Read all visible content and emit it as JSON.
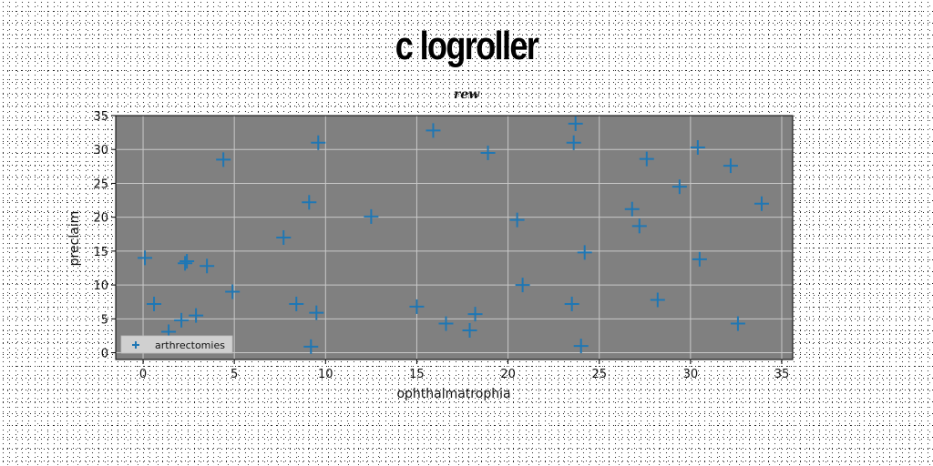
{
  "chart_data": {
    "type": "scatter",
    "title": "c logroller",
    "subtitle": "rew",
    "xlabel": "ophthalmatrophia",
    "ylabel": "preclaim",
    "xlim": [
      -1.5,
      35.6
    ],
    "ylim": [
      -1,
      35
    ],
    "xticks": [
      0,
      5,
      10,
      15,
      20,
      25,
      30,
      35
    ],
    "yticks": [
      0,
      5,
      10,
      15,
      20,
      25,
      30,
      35
    ],
    "grid": true,
    "legend_position": "lower-left",
    "colors": {
      "plot_background": "#808080",
      "marker": "#1f77b4",
      "grid": "#c8c8c8"
    },
    "series": [
      {
        "name": "arthrectomies",
        "marker": "plus",
        "x": [
          0.1,
          0.6,
          1.4,
          2.1,
          2.3,
          2.4,
          2.9,
          3.5,
          4.4,
          4.9,
          7.7,
          8.4,
          9.1,
          9.2,
          9.5,
          9.6,
          12.5,
          15.0,
          15.9,
          16.6,
          17.9,
          18.2,
          18.9,
          20.5,
          20.8,
          23.5,
          23.6,
          23.7,
          24.0,
          24.2,
          26.8,
          27.2,
          27.6,
          28.2,
          29.4,
          30.4,
          30.5,
          32.2,
          32.6,
          33.9
        ],
        "y": [
          14.0,
          7.2,
          3.1,
          4.8,
          13.2,
          13.5,
          5.5,
          12.8,
          28.5,
          9.0,
          17.0,
          7.2,
          22.2,
          0.9,
          5.9,
          31.0,
          20.1,
          6.8,
          32.8,
          4.3,
          3.3,
          5.7,
          29.5,
          19.6,
          10.0,
          7.2,
          31.0,
          33.8,
          1.0,
          14.8,
          21.2,
          18.7,
          28.6,
          7.8,
          24.5,
          30.3,
          13.8,
          27.6,
          4.3,
          22.0
        ]
      }
    ]
  }
}
